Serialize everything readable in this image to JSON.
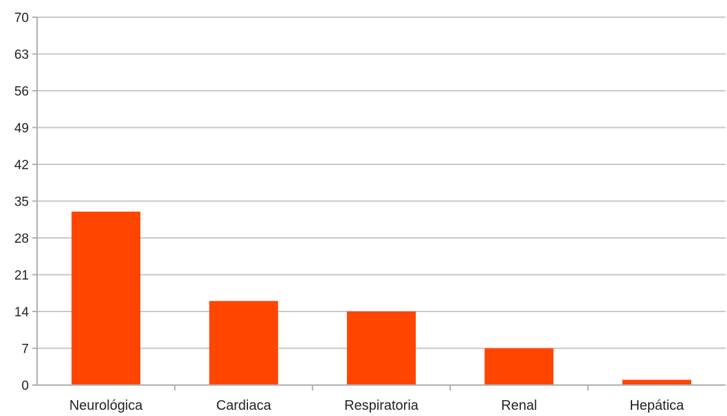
{
  "chart_data": {
    "type": "bar",
    "categories": [
      "Neurológica",
      "Cardiaca",
      "Respiratoria",
      "Renal",
      "Hepática"
    ],
    "values": [
      33,
      16,
      14,
      7,
      1
    ],
    "title": "",
    "xlabel": "",
    "ylabel": "",
    "ylim": [
      0,
      70
    ],
    "yticks": [
      0,
      7,
      14,
      21,
      28,
      35,
      42,
      49,
      56,
      63,
      70
    ],
    "ytick_labels": [
      "0",
      "7",
      "14",
      "21",
      "28",
      "35",
      "42",
      "49",
      "56",
      "63",
      "70"
    ],
    "grid": true,
    "legend": "none",
    "bar_color": "#ff4500"
  }
}
